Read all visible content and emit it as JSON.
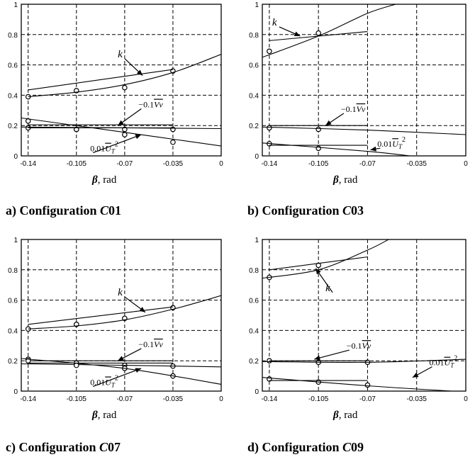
{
  "chart_data": [
    {
      "type": "line",
      "caption": "a) Configuration C01",
      "caption_prefix": "a) Configuration ",
      "caption_italic": "C",
      "caption_suffix": "01",
      "xlabel": "β, rad",
      "xlabel_symbol": "β",
      "xlabel_unit": ", rad",
      "xlim": [
        -0.145,
        0
      ],
      "ylim": [
        0,
        1
      ],
      "xticks": [
        "-0.14",
        "-0.105",
        "-0.07",
        "-0.035",
        "0"
      ],
      "yticks": [
        "0",
        "0.2",
        "0.4",
        "0.6",
        "0.8",
        "1"
      ],
      "grid": true,
      "series": [
        {
          "name": "k",
          "kind": "markers",
          "x": [
            -0.14,
            -0.105,
            -0.07,
            -0.035
          ],
          "y": [
            0.39,
            0.43,
            0.45,
            0.56
          ]
        },
        {
          "kind": "line",
          "x": [
            -0.14,
            -0.035
          ],
          "y": [
            0.435,
            0.57
          ]
        },
        {
          "kind": "curve",
          "x": [
            -0.14,
            -0.105,
            -0.07,
            -0.035,
            0
          ],
          "y": [
            0.39,
            0.42,
            0.47,
            0.55,
            0.67
          ]
        },
        {
          "name": "-0.1Vv",
          "kind": "markers",
          "x": [
            -0.14,
            -0.105,
            -0.07,
            -0.035
          ],
          "y": [
            0.185,
            0.175,
            0.175,
            0.175
          ]
        },
        {
          "kind": "line",
          "x": [
            -0.14,
            -0.035
          ],
          "y": [
            0.205,
            0.205
          ]
        },
        {
          "kind": "curve",
          "x": [
            -0.145,
            -0.07,
            0
          ],
          "y": [
            0.19,
            0.185,
            0.18
          ]
        },
        {
          "name": "0.01UT²",
          "kind": "markers",
          "x": [
            -0.14,
            -0.105,
            -0.07,
            -0.035
          ],
          "y": [
            0.23,
            0.175,
            0.14,
            0.09
          ]
        },
        {
          "kind": "line",
          "x": [
            -0.14,
            -0.035
          ],
          "y": [
            0.185,
            0.185
          ]
        },
        {
          "kind": "curve",
          "x": [
            -0.145,
            -0.07,
            0
          ],
          "y": [
            0.25,
            0.155,
            0.065
          ]
        }
      ],
      "annotations": [
        {
          "text": "k",
          "x": -0.075,
          "y": 0.65,
          "to": [
            -0.057,
            0.53
          ]
        },
        {
          "text": "−0.1Vv",
          "x": -0.06,
          "y": 0.32,
          "to": [
            -0.075,
            0.2
          ]
        },
        {
          "text": "0.01UT²",
          "x": -0.095,
          "y": 0.03,
          "to": [
            -0.058,
            0.14
          ]
        }
      ]
    },
    {
      "type": "line",
      "caption": "b) Configuration C03",
      "caption_prefix": "b) Configuration ",
      "caption_italic": "C",
      "caption_suffix": "03",
      "xlabel": "β, rad",
      "xlabel_symbol": "β",
      "xlabel_unit": ", rad",
      "xlim": [
        -0.145,
        0
      ],
      "ylim": [
        0,
        1
      ],
      "xticks": [
        "-0.14",
        "-0.105",
        "-0.07",
        "-0.035",
        "0"
      ],
      "yticks": [
        "0",
        "0.2",
        "0.4",
        "0.6",
        "0.8",
        "1"
      ],
      "grid": true,
      "series": [
        {
          "name": "k",
          "kind": "markers",
          "x": [
            -0.14,
            -0.105
          ],
          "y": [
            0.69,
            0.81
          ]
        },
        {
          "kind": "line",
          "x": [
            -0.14,
            -0.07
          ],
          "y": [
            0.76,
            0.82
          ]
        },
        {
          "kind": "curve",
          "x": [
            -0.145,
            -0.105,
            -0.07,
            -0.05
          ],
          "y": [
            0.65,
            0.79,
            0.94,
            1.0
          ]
        },
        {
          "name": "-0.1Vv",
          "kind": "markers",
          "x": [
            -0.14,
            -0.105
          ],
          "y": [
            0.185,
            0.175
          ]
        },
        {
          "kind": "line",
          "x": [
            -0.14,
            -0.07
          ],
          "y": [
            0.2,
            0.2
          ]
        },
        {
          "kind": "curve",
          "x": [
            -0.145,
            -0.07,
            0
          ],
          "y": [
            0.19,
            0.17,
            0.14
          ]
        },
        {
          "name": "0.01UT²",
          "kind": "markers",
          "x": [
            -0.14,
            -0.105
          ],
          "y": [
            0.08,
            0.05
          ]
        },
        {
          "kind": "line",
          "x": [
            -0.14,
            -0.07
          ],
          "y": [
            0.07,
            0.07
          ]
        },
        {
          "kind": "curve",
          "x": [
            -0.145,
            -0.07,
            -0.04
          ],
          "y": [
            0.085,
            0.03,
            0.0
          ]
        }
      ],
      "annotations": [
        {
          "text": "k",
          "x": -0.138,
          "y": 0.86,
          "to": [
            -0.118,
            0.79
          ]
        },
        {
          "text": "−0.1Vv",
          "x": -0.089,
          "y": 0.29,
          "to": [
            -0.1,
            0.2
          ]
        },
        {
          "text": "0.01UT²",
          "x": -0.063,
          "y": 0.06,
          "to": [
            -0.068,
            0.04
          ]
        }
      ]
    },
    {
      "type": "line",
      "caption": "c) Configuration C07",
      "caption_prefix": "c) Configuration ",
      "caption_italic": "C",
      "caption_suffix": "07",
      "xlabel": "β, rad",
      "xlabel_symbol": "β",
      "xlabel_unit": ", rad",
      "xlim": [
        -0.145,
        0
      ],
      "ylim": [
        0,
        1
      ],
      "xticks": [
        "-0.14",
        "-0.105",
        "-0.07",
        "-0.035",
        "0"
      ],
      "yticks": [
        "0",
        "0.2",
        "0.4",
        "0.6",
        "0.8",
        "1"
      ],
      "grid": true,
      "series": [
        {
          "name": "k",
          "kind": "markers",
          "x": [
            -0.14,
            -0.105,
            -0.07,
            -0.035
          ],
          "y": [
            0.41,
            0.44,
            0.48,
            0.55
          ]
        },
        {
          "kind": "line",
          "x": [
            -0.14,
            -0.035
          ],
          "y": [
            0.44,
            0.555
          ]
        },
        {
          "kind": "curve",
          "x": [
            -0.14,
            -0.105,
            -0.07,
            -0.035,
            0
          ],
          "y": [
            0.41,
            0.43,
            0.47,
            0.54,
            0.63
          ]
        },
        {
          "name": "-0.1Vv",
          "kind": "markers",
          "x": [
            -0.14,
            -0.105,
            -0.07,
            -0.035
          ],
          "y": [
            0.21,
            0.185,
            0.17,
            0.165
          ]
        },
        {
          "kind": "line",
          "x": [
            -0.14,
            -0.035
          ],
          "y": [
            0.2,
            0.2
          ]
        },
        {
          "kind": "curve",
          "x": [
            -0.145,
            -0.07,
            0
          ],
          "y": [
            0.18,
            0.17,
            0.16
          ]
        },
        {
          "name": "0.01UT²",
          "kind": "markers",
          "x": [
            -0.14,
            -0.105,
            -0.07,
            -0.035
          ],
          "y": [
            0.2,
            0.17,
            0.15,
            0.1
          ]
        },
        {
          "kind": "line",
          "x": [
            -0.14,
            -0.035
          ],
          "y": [
            0.185,
            0.185
          ]
        },
        {
          "kind": "curve",
          "x": [
            -0.145,
            -0.07,
            0
          ],
          "y": [
            0.215,
            0.15,
            0.045
          ]
        }
      ],
      "annotations": [
        {
          "text": "k",
          "x": -0.075,
          "y": 0.63,
          "to": [
            -0.055,
            0.52
          ]
        },
        {
          "text": "−0.1Vv",
          "x": -0.06,
          "y": 0.29,
          "to": [
            -0.075,
            0.2
          ]
        },
        {
          "text": "0.01UT²",
          "x": -0.095,
          "y": 0.04,
          "to": [
            -0.058,
            0.15
          ]
        }
      ]
    },
    {
      "type": "line",
      "caption": "d) Configuration C09",
      "caption_prefix": "d) Configuration ",
      "caption_italic": "C",
      "caption_suffix": "09",
      "xlabel": "β, rad",
      "xlabel_symbol": "β",
      "xlabel_unit": ", rad",
      "xlim": [
        -0.145,
        0
      ],
      "ylim": [
        0,
        1
      ],
      "xticks": [
        "-0.14",
        "-0.105",
        "-0.07",
        "-0.035",
        "0"
      ],
      "yticks": [
        "0",
        "0.2",
        "0.4",
        "0.6",
        "0.8",
        "1"
      ],
      "grid": true,
      "series": [
        {
          "name": "k",
          "kind": "markers",
          "x": [
            -0.14,
            -0.105
          ],
          "y": [
            0.75,
            0.83
          ]
        },
        {
          "kind": "line",
          "x": [
            -0.14,
            -0.07
          ],
          "y": [
            0.8,
            0.885
          ]
        },
        {
          "kind": "curve",
          "x": [
            -0.145,
            -0.105,
            -0.07,
            -0.055
          ],
          "y": [
            0.745,
            0.8,
            0.93,
            1.0
          ]
        },
        {
          "name": "-0.1Vv",
          "kind": "markers",
          "x": [
            -0.14,
            -0.105,
            -0.07
          ],
          "y": [
            0.2,
            0.19,
            0.19
          ]
        },
        {
          "kind": "line",
          "x": [
            -0.14,
            -0.07
          ],
          "y": [
            0.2,
            0.2
          ]
        },
        {
          "kind": "curve",
          "x": [
            -0.145,
            -0.07,
            0
          ],
          "y": [
            0.195,
            0.19,
            0.21
          ]
        },
        {
          "name": "0.01UT²",
          "kind": "markers",
          "x": [
            -0.14,
            -0.105,
            -0.07
          ],
          "y": [
            0.08,
            0.06,
            0.04
          ]
        },
        {
          "kind": "line",
          "x": [
            -0.14,
            -0.07
          ],
          "y": [
            0.07,
            0.07
          ]
        },
        {
          "kind": "curve",
          "x": [
            -0.145,
            -0.07,
            -0.01
          ],
          "y": [
            0.09,
            0.035,
            0.0
          ]
        }
      ],
      "annotations": [
        {
          "text": "k",
          "x": -0.1,
          "y": 0.66,
          "to": [
            -0.107,
            0.81
          ]
        },
        {
          "text": "−0.1Vv",
          "x": -0.085,
          "y": 0.28,
          "to": [
            -0.108,
            0.21
          ]
        },
        {
          "text": "0.01UT²",
          "x": -0.026,
          "y": 0.17,
          "to": [
            -0.038,
            0.09
          ]
        }
      ]
    }
  ]
}
